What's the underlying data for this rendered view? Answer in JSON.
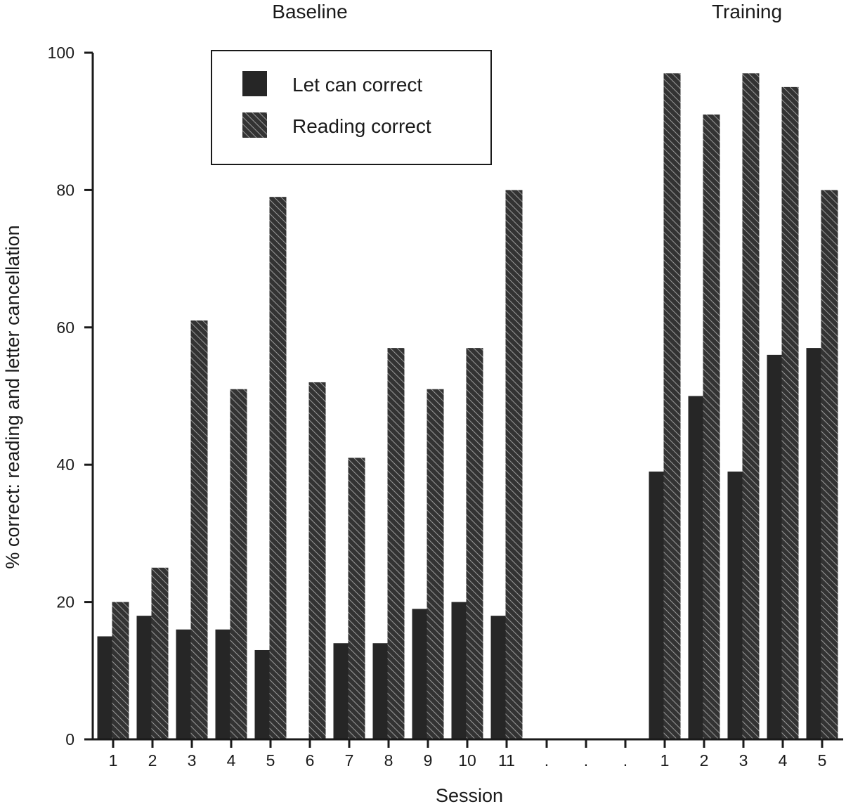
{
  "chart_data": {
    "type": "bar",
    "sections": [
      {
        "label": "Baseline",
        "categories": [
          "1",
          "2",
          "3",
          "4",
          "5",
          "6",
          "7",
          "8",
          "9",
          "10",
          "11"
        ]
      },
      {
        "label": "Training",
        "categories": [
          "1",
          "2",
          "3",
          "4",
          "5"
        ]
      }
    ],
    "gap_markers": [
      ".",
      ".",
      "."
    ],
    "series": [
      {
        "name": "Let can correct",
        "color": "#262626",
        "baseline": [
          15,
          18,
          16,
          16,
          13,
          null,
          14,
          14,
          19,
          20,
          18
        ],
        "training": [
          39,
          50,
          39,
          56,
          57
        ]
      },
      {
        "name": "Reading correct",
        "color": "#333333",
        "pattern": "hatched",
        "baseline": [
          20,
          25,
          61,
          51,
          79,
          52,
          41,
          57,
          51,
          57,
          80
        ],
        "training": [
          97,
          91,
          97,
          95,
          80
        ]
      }
    ],
    "ylabel": "% correct: reading and letter cancellation",
    "xlabel": "Session",
    "ylim": [
      0,
      100
    ],
    "yticks": [
      0,
      20,
      40,
      60,
      80,
      100
    ],
    "legend_position": "top-left",
    "grid": false
  }
}
